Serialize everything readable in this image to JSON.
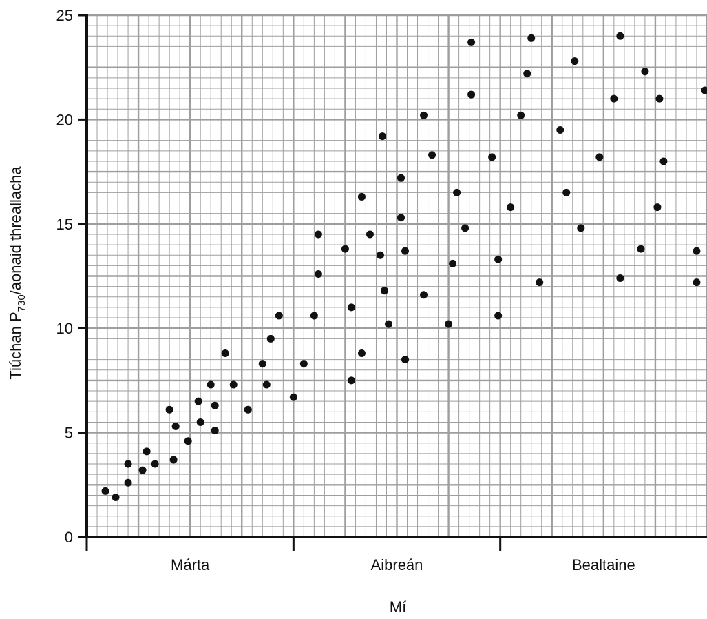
{
  "chart_data": {
    "type": "scatter",
    "xlabel": "Mí",
    "ylabel": {
      "prefix": "Tiúchan P",
      "subscript": "730",
      "suffix": "/aonaid threallacha"
    },
    "ylim": [
      0,
      25
    ],
    "xlim": [
      0,
      3
    ],
    "yticks": [
      "0",
      "5",
      "10",
      "15",
      "20",
      "25"
    ],
    "month_labels": [
      "Márta",
      "Aibreán",
      "Bealtaine"
    ],
    "grid": "on",
    "point_color": "#111111",
    "grid_color": "#9e9e9e",
    "axis_color": "#111111",
    "points": [
      [
        0.09,
        2.2
      ],
      [
        0.14,
        1.9
      ],
      [
        0.2,
        2.6
      ],
      [
        0.2,
        3.5
      ],
      [
        0.27,
        3.2
      ],
      [
        0.29,
        4.1
      ],
      [
        0.33,
        3.5
      ],
      [
        0.4,
        6.1
      ],
      [
        0.42,
        3.7
      ],
      [
        0.43,
        5.3
      ],
      [
        0.49,
        4.6
      ],
      [
        0.54,
        6.5
      ],
      [
        0.55,
        5.5
      ],
      [
        0.6,
        7.3
      ],
      [
        0.62,
        6.3
      ],
      [
        0.62,
        5.1
      ],
      [
        0.67,
        8.8
      ],
      [
        0.71,
        7.3
      ],
      [
        0.78,
        6.1
      ],
      [
        0.85,
        8.3
      ],
      [
        0.87,
        7.3
      ],
      [
        0.89,
        9.5
      ],
      [
        0.93,
        10.6
      ],
      [
        1.0,
        6.7
      ],
      [
        1.05,
        8.3
      ],
      [
        1.1,
        10.6
      ],
      [
        1.12,
        14.5
      ],
      [
        1.12,
        12.6
      ],
      [
        1.25,
        13.8
      ],
      [
        1.28,
        11.0
      ],
      [
        1.28,
        7.5
      ],
      [
        1.33,
        16.3
      ],
      [
        1.33,
        8.8
      ],
      [
        1.37,
        14.5
      ],
      [
        1.42,
        13.5
      ],
      [
        1.43,
        19.2
      ],
      [
        1.44,
        11.8
      ],
      [
        1.46,
        10.2
      ],
      [
        1.52,
        15.3
      ],
      [
        1.52,
        17.2
      ],
      [
        1.54,
        13.7
      ],
      [
        1.54,
        8.5
      ],
      [
        1.63,
        20.2
      ],
      [
        1.63,
        11.6
      ],
      [
        1.67,
        18.3
      ],
      [
        1.75,
        10.2
      ],
      [
        1.77,
        13.1
      ],
      [
        1.79,
        16.5
      ],
      [
        1.83,
        14.8
      ],
      [
        1.86,
        21.2
      ],
      [
        1.86,
        23.7
      ],
      [
        1.96,
        18.2
      ],
      [
        1.99,
        13.3
      ],
      [
        1.99,
        10.6
      ],
      [
        2.05,
        15.8
      ],
      [
        2.1,
        20.2
      ],
      [
        2.13,
        22.2
      ],
      [
        2.15,
        23.9
      ],
      [
        2.19,
        12.2
      ],
      [
        2.29,
        19.5
      ],
      [
        2.32,
        16.5
      ],
      [
        2.36,
        22.8
      ],
      [
        2.39,
        14.8
      ],
      [
        2.48,
        18.2
      ],
      [
        2.55,
        21.0
      ],
      [
        2.58,
        12.4
      ],
      [
        2.58,
        24.0
      ],
      [
        2.68,
        13.8
      ],
      [
        2.7,
        22.3
      ],
      [
        2.76,
        15.8
      ],
      [
        2.77,
        21.0
      ],
      [
        2.79,
        18.0
      ],
      [
        2.95,
        13.7
      ],
      [
        2.95,
        12.2
      ],
      [
        2.99,
        21.4
      ]
    ]
  }
}
